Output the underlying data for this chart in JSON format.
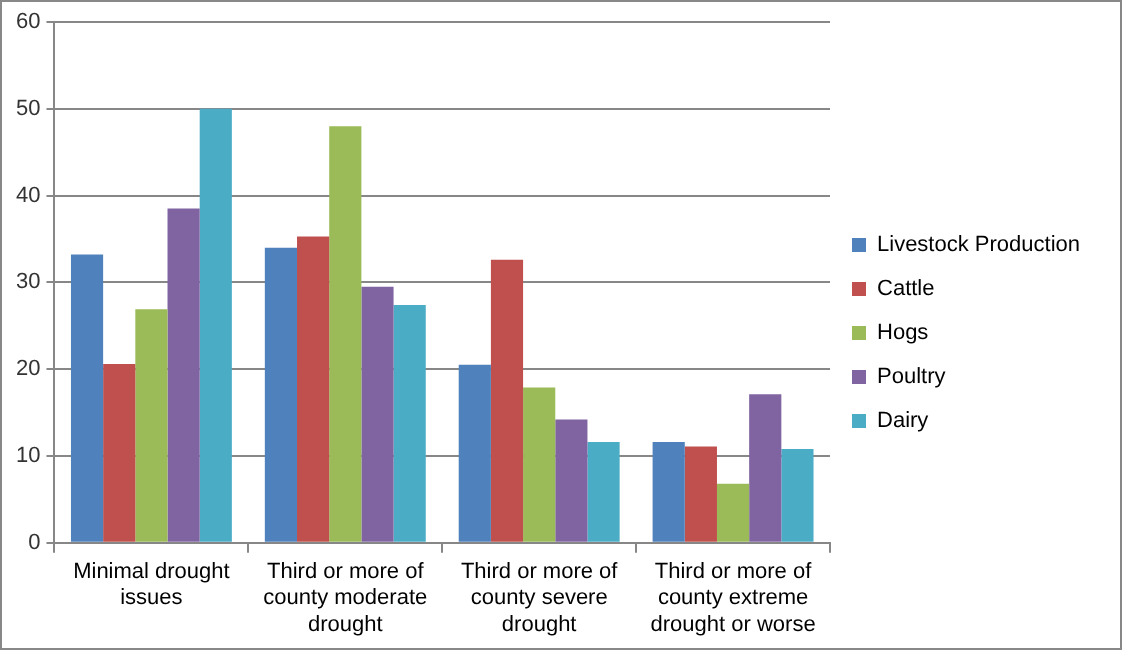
{
  "chart_data": {
    "type": "bar",
    "categories": [
      "Minimal drought issues",
      "Third or more of county moderate drought",
      "Third or more of county severe drought",
      "Third or more of county extreme drought or worse"
    ],
    "series": [
      {
        "name": "Livestock Production",
        "color": "#4f81bd",
        "values": [
          33.2,
          34,
          20.5,
          11.6
        ]
      },
      {
        "name": "Cattle",
        "color": "#c0504d",
        "values": [
          20.6,
          35.3,
          32.6,
          11.1
        ]
      },
      {
        "name": "Hogs",
        "color": "#9bbb59",
        "values": [
          26.9,
          48,
          17.9,
          6.8
        ]
      },
      {
        "name": "Poultry",
        "color": "#8064a2",
        "values": [
          38.5,
          29.5,
          14.2,
          17.1
        ]
      },
      {
        "name": "Dairy",
        "color": "#4bacc6",
        "values": [
          50,
          27.4,
          11.6,
          10.8
        ]
      }
    ],
    "ylim": [
      0,
      60
    ],
    "yticks": [
      0,
      10,
      20,
      30,
      40,
      50,
      60
    ],
    "grid": "y",
    "legend": "right"
  }
}
